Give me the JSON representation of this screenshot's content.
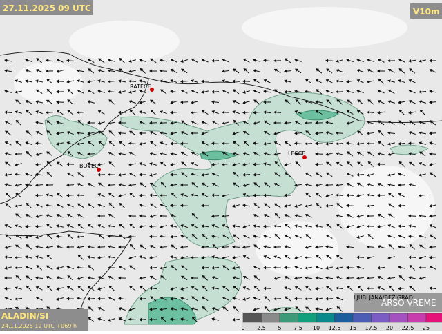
{
  "header": {
    "title": "27.11.2025 09 UTC",
    "field": "V10m"
  },
  "places": [
    {
      "label": "RATEČE"
    },
    {
      "label": "BOVEC"
    },
    {
      "label": "LESCE"
    },
    {
      "label": "LJUBLJANA/BEŽIGRAD"
    }
  ],
  "footer": {
    "model": "ALADIN/SI",
    "run": "24.11.2025 12 UTC +069 h",
    "brand": "ARSO VREME"
  },
  "legend": {
    "labels": [
      0,
      2.5,
      5,
      7.5,
      10,
      12.5,
      15,
      17.5,
      20,
      22.5,
      25
    ],
    "colors": [
      "#555555",
      "#8a8a8a",
      "#3d9a78",
      "#10a07c",
      "#0a8a8a",
      "#1a5e9e",
      "#4d5cb4",
      "#7a5cc4",
      "#a452c0",
      "#c83cae",
      "#e6127a"
    ]
  }
}
